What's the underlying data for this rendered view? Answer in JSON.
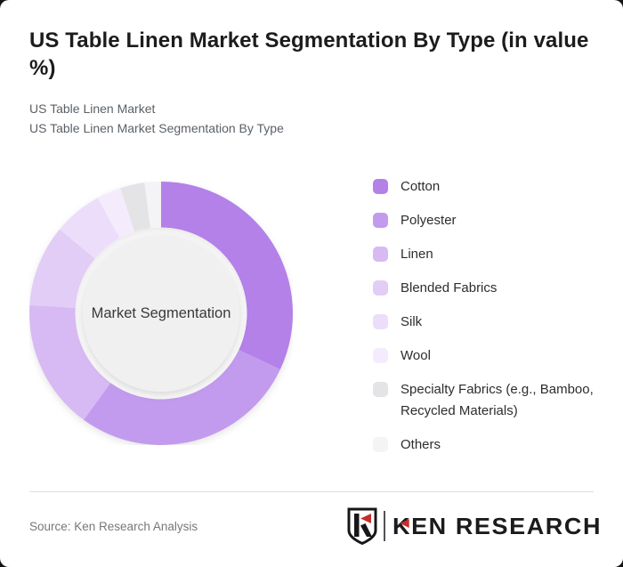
{
  "page": {
    "background": "#141414",
    "card_background": "#ffffff"
  },
  "header": {
    "title": "US Table Linen Market Segmentation By Type (in value %)",
    "subtitle1": "US Table Linen Market",
    "subtitle2": "US Table Linen Market Segmentation By Type"
  },
  "chart_data": {
    "type": "pie",
    "donut": true,
    "title": "US Table Linen Market Segmentation By Type (in value %)",
    "unit": "%",
    "center_label": "Market Segmentation",
    "start_angle_deg": 0,
    "direction": "clockwise",
    "legend_position": "right",
    "data_labels_shown": false,
    "segments": [
      {
        "label": "Cotton",
        "value": 32,
        "color": "#b381e8"
      },
      {
        "label": "Polyester",
        "value": 28,
        "color": "#c29bee"
      },
      {
        "label": "Linen",
        "value": 16,
        "color": "#d7baf3"
      },
      {
        "label": "Blended Fabrics",
        "value": 10,
        "color": "#e2cdf6"
      },
      {
        "label": "Silk",
        "value": 6,
        "color": "#ecdefa"
      },
      {
        "label": "Wool",
        "value": 3,
        "color": "#f4ecfc"
      },
      {
        "label": "Specialty Fabrics (e.g., Bamboo, Recycled Materials)",
        "value": 3,
        "color": "#e4e3e6"
      },
      {
        "label": "Others",
        "value": 2,
        "color": "#f4f3f5"
      }
    ],
    "center_circle_color": "#f0f0f0"
  },
  "footer": {
    "source": "Source: Ken Research Analysis",
    "logo": {
      "brand": "KEN RESEARCH",
      "accent_color": "#c4302b",
      "emblem": "shield-K"
    }
  }
}
